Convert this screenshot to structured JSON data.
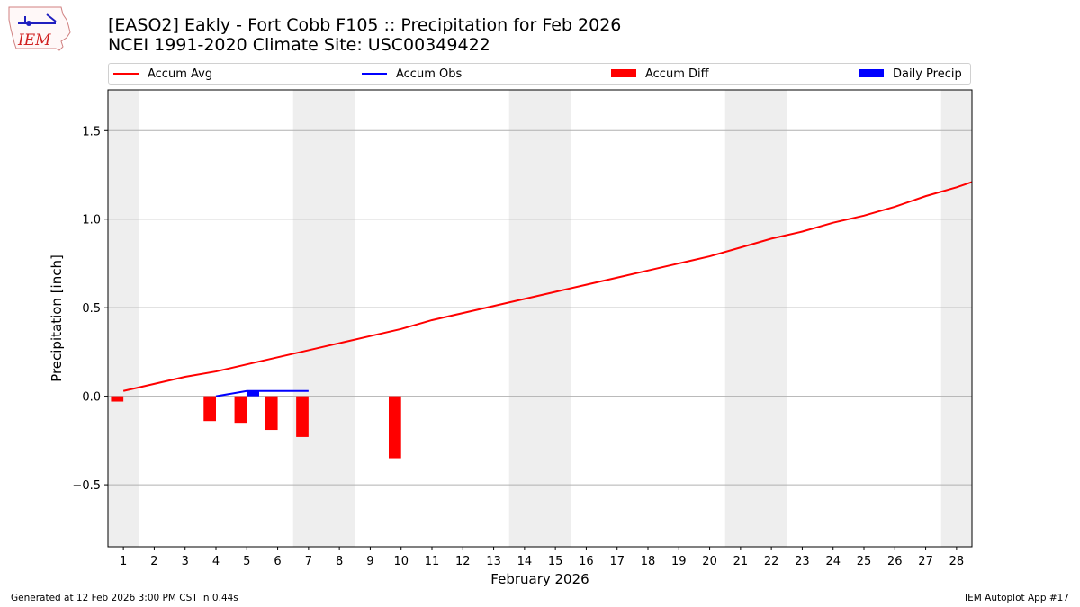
{
  "logo_text": "IEM",
  "title_line1": "[EASO2] Eakly - Fort Cobb F105 :: Precipitation for Feb 2026",
  "title_line2": "NCEI 1991-2020 Climate Site: USC00349422",
  "legend": [
    {
      "label": "Accum Avg",
      "kind": "line",
      "color": "#ff0000"
    },
    {
      "label": "Accum Obs",
      "kind": "line",
      "color": "#0000ff"
    },
    {
      "label": "Accum Diff",
      "kind": "box",
      "color": "#ff0000"
    },
    {
      "label": "Daily Precip",
      "kind": "box",
      "color": "#0000ff"
    }
  ],
  "footer_left": "Generated at 12 Feb 2026 3:00 PM CST in 0.44s",
  "footer_right": "IEM Autoplot App #17",
  "chart_data": {
    "type": "bar",
    "xlabel": "February 2026",
    "ylabel": "Precipitation [inch]",
    "xlim": [
      0.5,
      28.5
    ],
    "ylim": [
      -0.85,
      1.73
    ],
    "x_ticks": [
      1,
      2,
      3,
      4,
      5,
      6,
      7,
      8,
      9,
      10,
      11,
      12,
      13,
      14,
      15,
      16,
      17,
      18,
      19,
      20,
      21,
      22,
      23,
      24,
      25,
      26,
      27,
      28
    ],
    "y_ticks": [
      -0.5,
      0.0,
      0.5,
      1.0,
      1.5
    ],
    "y_tick_labels": [
      "−0.5",
      "0.0",
      "0.5",
      "1.0",
      "1.5"
    ],
    "weekend_spans": [
      [
        0.5,
        1.5
      ],
      [
        6.5,
        8.5
      ],
      [
        13.5,
        15.5
      ],
      [
        20.5,
        22.5
      ],
      [
        27.5,
        28.5
      ]
    ],
    "accum_avg": {
      "name": "Accum Avg",
      "color": "#ff0000",
      "x": [
        1,
        2,
        3,
        4,
        5,
        6,
        7,
        8,
        9,
        10,
        11,
        12,
        13,
        14,
        15,
        16,
        17,
        18,
        19,
        20,
        21,
        22,
        23,
        24,
        25,
        26,
        27,
        28,
        28.5
      ],
      "values": [
        0.03,
        0.07,
        0.11,
        0.14,
        0.18,
        0.22,
        0.26,
        0.3,
        0.34,
        0.38,
        0.43,
        0.47,
        0.51,
        0.55,
        0.59,
        0.63,
        0.67,
        0.71,
        0.75,
        0.79,
        0.84,
        0.89,
        0.93,
        0.98,
        1.02,
        1.07,
        1.13,
        1.18,
        1.21
      ]
    },
    "accum_obs": {
      "name": "Accum Obs",
      "color": "#0000ff",
      "x": [
        4,
        5,
        6,
        7
      ],
      "values": [
        0.0,
        0.03,
        0.03,
        0.03
      ]
    },
    "accum_diff": {
      "name": "Accum Diff",
      "color": "#ff0000",
      "x": [
        1,
        4,
        5,
        6,
        7,
        10
      ],
      "values": [
        -0.03,
        -0.14,
        -0.15,
        -0.19,
        -0.23,
        -0.35
      ]
    },
    "daily_precip": {
      "name": "Daily Precip",
      "color": "#0000ff",
      "x": [
        5
      ],
      "values": [
        0.03
      ]
    }
  }
}
